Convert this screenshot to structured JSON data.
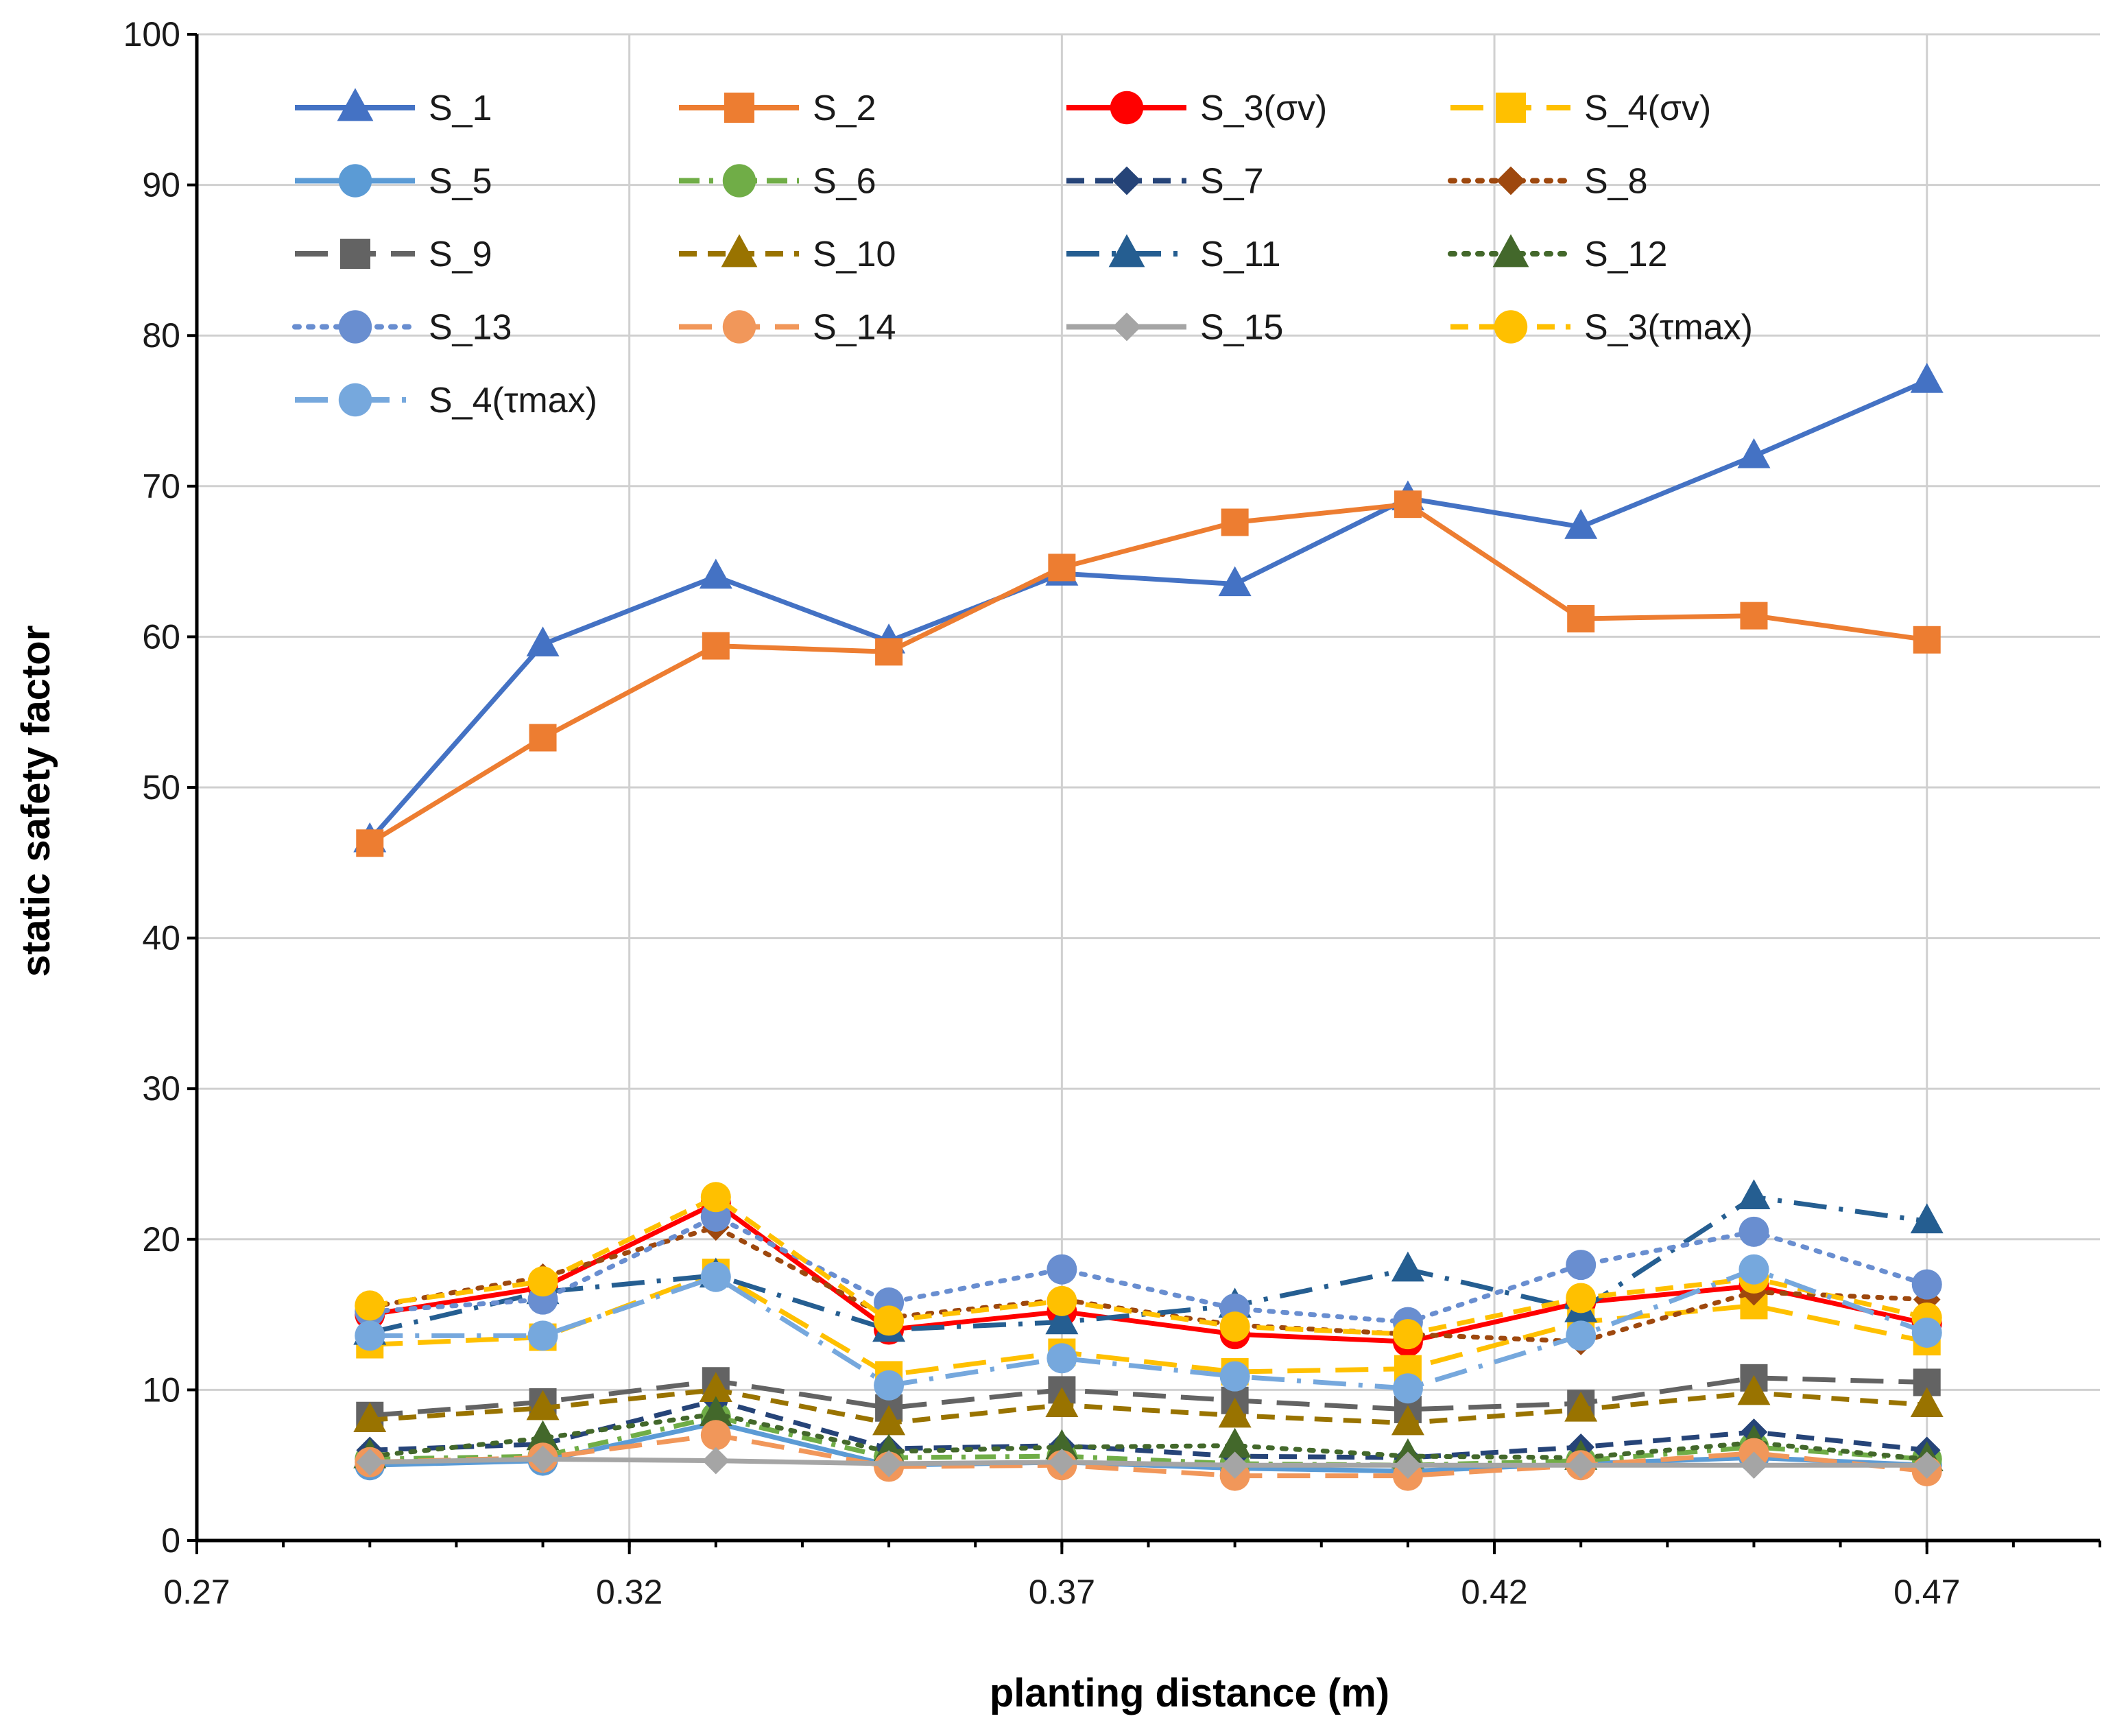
{
  "chart_data": {
    "type": "line",
    "title": "",
    "xlabel": "planting distance (m)",
    "ylabel": "static safety factor",
    "xlim": [
      0.27,
      0.49
    ],
    "ylim": [
      0,
      100
    ],
    "x_major_ticks": [
      0.27,
      0.32,
      0.37,
      0.42,
      0.47
    ],
    "x_tick_labels": [
      "0.27",
      "0.32",
      "0.37",
      "0.42",
      "0.47"
    ],
    "x_minor_step": 0.01,
    "y_ticks": [
      0,
      10,
      20,
      30,
      40,
      50,
      60,
      70,
      80,
      90,
      100
    ],
    "y_tick_labels": [
      "0",
      "10",
      "20",
      "30",
      "40",
      "50",
      "60",
      "70",
      "80",
      "90",
      "100"
    ],
    "grid": true,
    "legend_position": "top-left, inside plot, 4 columns",
    "x": [
      0.29,
      0.31,
      0.33,
      0.35,
      0.37,
      0.39,
      0.41,
      0.43,
      0.45,
      0.47
    ],
    "series": [
      {
        "name": "S_1",
        "color": "#4472c4",
        "marker": "triangle",
        "dash": "solid",
        "values": [
          46.5,
          59.5,
          64,
          59.7,
          64.2,
          63.5,
          69.2,
          67.3,
          72,
          77
        ]
      },
      {
        "name": "S_2",
        "color": "#ed7d31",
        "marker": "square",
        "dash": "solid",
        "values": [
          46.3,
          53.3,
          59.4,
          59,
          64.6,
          67.6,
          68.8,
          61.2,
          61.4,
          59.8
        ]
      },
      {
        "name": "S_3(σv)",
        "color": "#ff0000",
        "marker": "circle",
        "dash": "solid",
        "values": [
          15,
          16.8,
          22.4,
          14,
          15.2,
          13.7,
          13.2,
          15.8,
          16.9,
          14.4
        ]
      },
      {
        "name": "S_4(σv)",
        "color": "#ffc000",
        "marker": "square",
        "dash": "longdash",
        "values": [
          13,
          13.5,
          17.8,
          11,
          12.5,
          11.2,
          11.4,
          14.5,
          15.6,
          13.2
        ]
      },
      {
        "name": "S_5",
        "color": "#5b9bd5",
        "marker": "circle",
        "dash": "solid",
        "values": [
          5,
          5.3,
          7.8,
          5,
          5.2,
          4.8,
          4.6,
          5.1,
          5.5,
          5
        ]
      },
      {
        "name": "S_6",
        "color": "#70ad47",
        "marker": "circle",
        "dash": "dashdot",
        "values": [
          5.4,
          5.6,
          8.2,
          5.5,
          5.6,
          5.1,
          5,
          5.3,
          6.2,
          5.4
        ]
      },
      {
        "name": "S_7",
        "color": "#264478",
        "marker": "diamond",
        "dash": "dash",
        "values": [
          6,
          6.4,
          9.3,
          6.1,
          6.3,
          5.6,
          5.5,
          6.2,
          7.2,
          6
        ]
      },
      {
        "name": "S_8",
        "color": "#9e480e",
        "marker": "diamond",
        "dash": "dot",
        "values": [
          15.5,
          17.5,
          20.8,
          14.8,
          16,
          14.3,
          13.7,
          13.2,
          16.5,
          16
        ]
      },
      {
        "name": "S_9",
        "color": "#636363",
        "marker": "square",
        "dash": "longdash",
        "values": [
          8.3,
          9.2,
          10.6,
          8.8,
          10,
          9.3,
          8.7,
          9.1,
          10.8,
          10.5
        ]
      },
      {
        "name": "S_10",
        "color": "#997300",
        "marker": "triangle",
        "dash": "dash",
        "values": [
          8,
          8.8,
          10,
          7.8,
          9,
          8.3,
          7.8,
          8.7,
          9.8,
          9
        ]
      },
      {
        "name": "S_11",
        "color": "#255e91",
        "marker": "triangle",
        "dash": "longdashdot",
        "values": [
          13.8,
          16.5,
          17.6,
          14,
          14.5,
          15.6,
          18,
          15.3,
          22.8,
          21.2
        ]
      },
      {
        "name": "S_12",
        "color": "#43682b",
        "marker": "triangle",
        "dash": "dot",
        "values": [
          5.6,
          6.8,
          8.4,
          5.9,
          6.2,
          6.3,
          5.6,
          5.5,
          6.5,
          5.4
        ]
      },
      {
        "name": "S_13",
        "color": "#698ed0",
        "marker": "circle",
        "dash": "dot",
        "values": [
          15.2,
          16,
          21.5,
          15.8,
          18,
          15.4,
          14.5,
          18.3,
          20.5,
          17
        ]
      },
      {
        "name": "S_14",
        "color": "#f1975a",
        "marker": "circle",
        "dash": "longdash",
        "values": [
          5.2,
          5.5,
          7,
          4.9,
          5,
          4.3,
          4.3,
          5,
          5.8,
          4.6
        ]
      },
      {
        "name": "S_15",
        "color": "#a5a5a5",
        "marker": "diamond",
        "dash": "solid",
        "values": [
          5.2,
          5.4,
          5.3,
          5.1,
          5.2,
          5,
          5,
          5,
          5,
          5
        ]
      },
      {
        "name": "S_3(τmax)",
        "color": "#ffc000",
        "marker": "circle",
        "dash": "dash",
        "values": [
          15.6,
          17.2,
          22.8,
          14.6,
          15.9,
          14.2,
          13.7,
          16.1,
          17.4,
          14.8
        ]
      },
      {
        "name": "S_4(τmax)",
        "color": "#76a8dd",
        "marker": "circle",
        "dash": "longdashdot",
        "values": [
          13.6,
          13.6,
          17.5,
          10.3,
          12.1,
          10.9,
          10.1,
          13.6,
          18,
          13.8
        ]
      }
    ]
  }
}
